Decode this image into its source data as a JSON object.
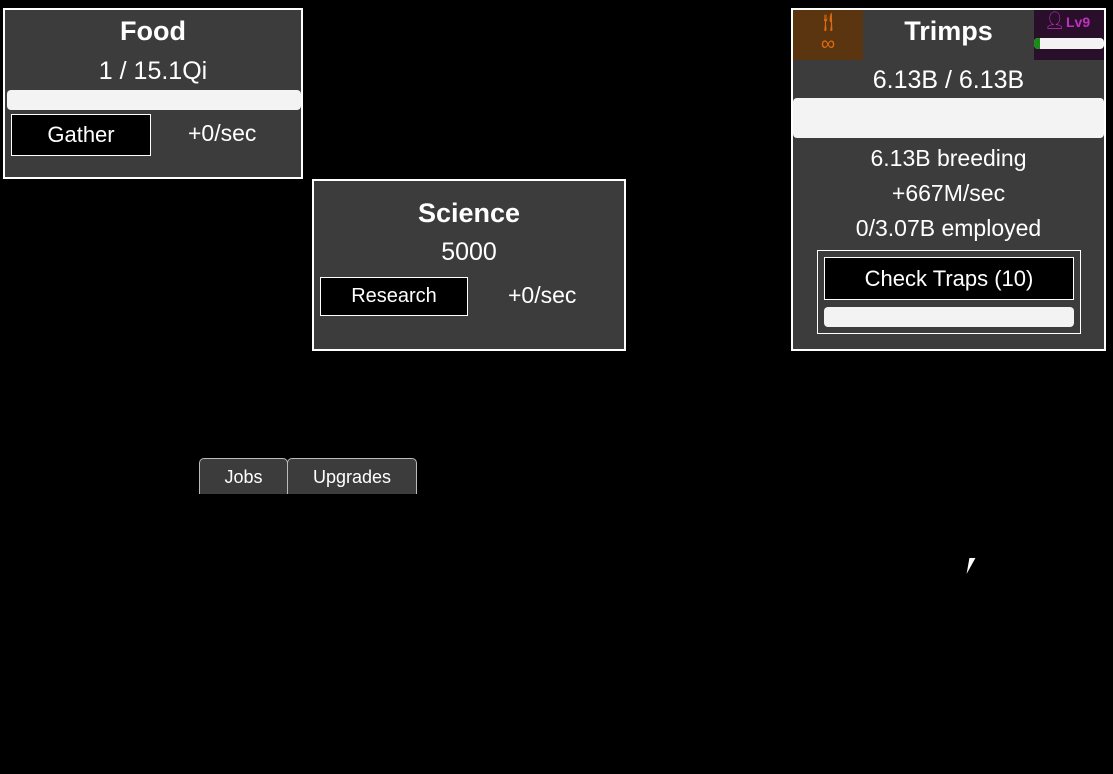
{
  "food": {
    "title": "Food",
    "amount": "1 / 15.1Qi",
    "button": "Gather",
    "rate": "+0/sec"
  },
  "science": {
    "title": "Science",
    "amount": "5000",
    "button": "Research",
    "rate": "+0/sec"
  },
  "trimps": {
    "title": "Trimps",
    "amount": "6.13B / 6.13B",
    "breeding": "6.13B breeding",
    "rate": "+667M/sec",
    "employed": "0/3.07B employed",
    "button": "Check Traps (10)",
    "level": "Lv9",
    "fork_icon": "utensils-icon",
    "infinity": "∞",
    "colors": {
      "food_icon": "#e06a10",
      "level": "#c030c0",
      "level_bar": "#1a8a1a"
    }
  },
  "tabs": [
    {
      "label": "Jobs"
    },
    {
      "label": "Upgrades"
    }
  ]
}
